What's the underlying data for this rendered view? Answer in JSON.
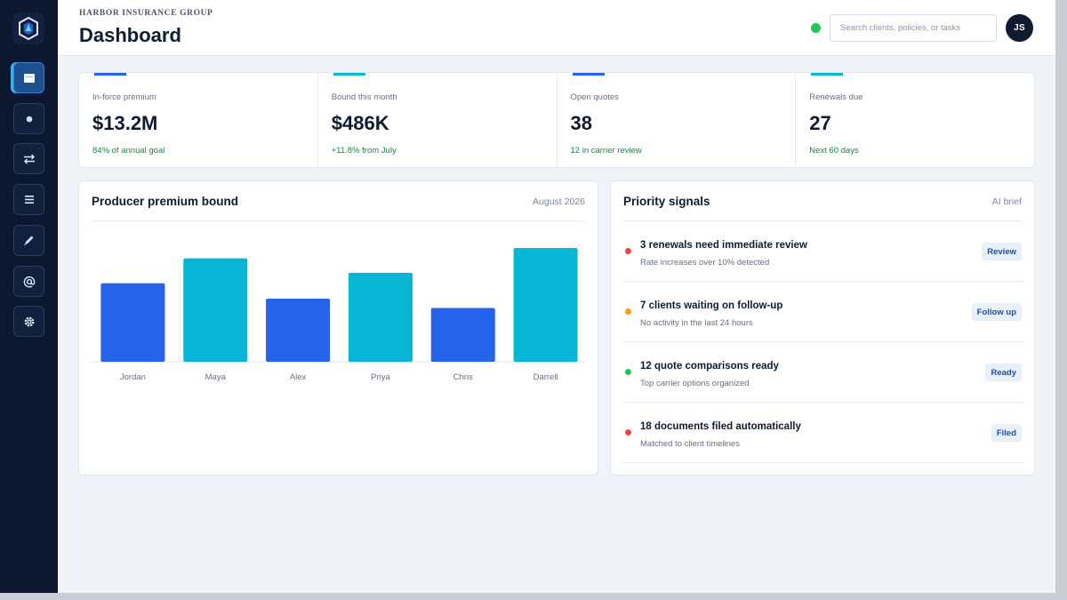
{
  "header": {
    "org": "HARBOR INSURANCE GROUP",
    "title": "Dashboard",
    "search_placeholder": "Search clients, policies, or tasks",
    "avatar_initials": "JS",
    "status_color": "#23c55e"
  },
  "sidebar": {
    "logo": "shield-logo-icon",
    "items": [
      {
        "icon": "dashboard-icon",
        "active": true
      },
      {
        "icon": "dot-icon",
        "active": false
      },
      {
        "icon": "transfer-arrows-icon",
        "active": false
      },
      {
        "icon": "list-icon",
        "active": false
      },
      {
        "icon": "pen-icon",
        "active": false
      },
      {
        "icon": "at-sign-icon",
        "active": false
      },
      {
        "icon": "gear-icon",
        "active": false
      }
    ]
  },
  "kpis": [
    {
      "label": "In-force premium",
      "value": "$13.2M",
      "sub": "84% of annual goal",
      "accent": "#2563eb"
    },
    {
      "label": "Bound this month",
      "value": "$486K",
      "sub": "+11.8% from July",
      "accent": "#06b6d4"
    },
    {
      "label": "Open quotes",
      "value": "38",
      "sub": "12 in carrier review",
      "accent": "#2563eb"
    },
    {
      "label": "Renewals due",
      "value": "27",
      "sub": "Next 60 days",
      "accent": "#06b6d4"
    }
  ],
  "chart_panel": {
    "title": "Producer premium bound",
    "period": "August 2026"
  },
  "chart_data": {
    "type": "bar",
    "categories": [
      "Jordan",
      "Maya",
      "Alex",
      "Priya",
      "Chris",
      "Darrell"
    ],
    "values": [
      76,
      100,
      61,
      86,
      52,
      110
    ],
    "colors": [
      "#2563eb",
      "#06b6d4",
      "#2563eb",
      "#06b6d4",
      "#2563eb",
      "#06b6d4"
    ],
    "ylim": [
      0,
      110
    ],
    "grid": false,
    "title": "",
    "xlabel": "",
    "ylabel": ""
  },
  "signals_panel": {
    "title": "Priority signals",
    "meta": "AI brief",
    "items": [
      {
        "title": "3 renewals need immediate review",
        "desc": "Rate increases over 10% detected",
        "action": "Review",
        "color": "#e5484d"
      },
      {
        "title": "7 clients waiting on follow-up",
        "desc": "No activity in the last 24 hours",
        "action": "Follow up",
        "color": "#f59e0b"
      },
      {
        "title": "12 quote comparisons ready",
        "desc": "Top carrier options organized",
        "action": "Ready",
        "color": "#22c55e"
      },
      {
        "title": "18 documents filed automatically",
        "desc": "Matched to client timelines",
        "action": "Filed",
        "color": "#e5484d"
      }
    ]
  }
}
